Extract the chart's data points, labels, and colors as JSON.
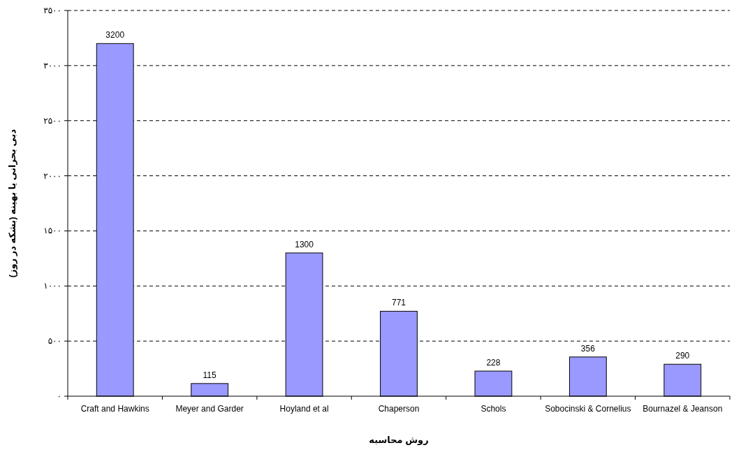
{
  "chart_data": {
    "type": "bar",
    "categories": [
      "Craft and Hawkins",
      "Meyer and Garder",
      "Hoyland et al",
      "Chaperson",
      "Schols",
      "Sobocinski & Cornelius",
      "Bournazel & Jeanson"
    ],
    "values": [
      3200,
      115,
      1300,
      771,
      228,
      356,
      290
    ],
    "color": "#9999ff",
    "xlabel": "روش محاسبه",
    "ylabel": "دبی بحرانی یا بهینه (بشکه در روز)",
    "ylim": [
      0,
      3500
    ],
    "yticks": [
      {
        "value": 0,
        "label": "۰"
      },
      {
        "value": 500,
        "label": "۵۰۰"
      },
      {
        "value": 1000,
        "label": "۱۰۰۰"
      },
      {
        "value": 1500,
        "label": "۱۵۰۰"
      },
      {
        "value": 2000,
        "label": "۲۰۰۰"
      },
      {
        "value": 2500,
        "label": "۲۵۰۰"
      },
      {
        "value": 3000,
        "label": "۳۰۰۰"
      },
      {
        "value": 3500,
        "label": "۳۵۰۰"
      }
    ],
    "grid": "y",
    "data_labels": true
  }
}
